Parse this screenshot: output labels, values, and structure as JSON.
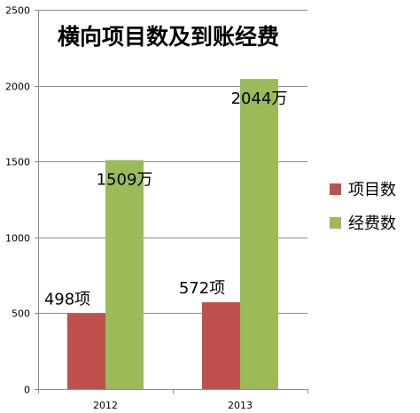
{
  "chart_data": {
    "type": "bar",
    "title": "横向项目数及到账经费",
    "categories": [
      "2012",
      "2013"
    ],
    "ylim": [
      0,
      2500
    ],
    "y_ticks": [
      0,
      500,
      1000,
      1500,
      2000,
      2500
    ],
    "y_tick_labels": [
      "0",
      "500",
      "1000",
      "1500",
      "2000",
      "2500"
    ],
    "grid": true,
    "legend_position": "right",
    "series": [
      {
        "name": "项目数",
        "color": "#c0504d",
        "values": [
          498,
          572
        ],
        "data_labels": [
          "498项",
          "572项"
        ]
      },
      {
        "name": "经费数",
        "color": "#9bbb59",
        "values": [
          1509,
          2044
        ],
        "data_labels": [
          "1509万",
          "2044万"
        ]
      }
    ]
  }
}
